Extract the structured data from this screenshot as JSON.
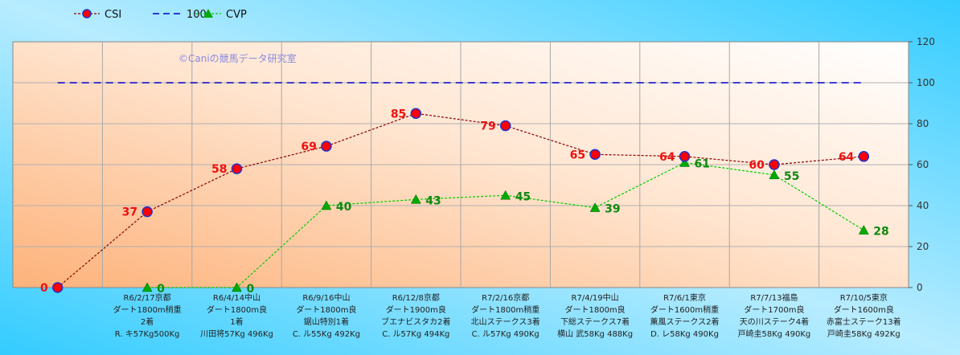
{
  "chart_data": {
    "type": "line",
    "watermark": "©Caniの競馬データ研究室",
    "categories": [
      [
        "",
        "",
        "",
        ""
      ],
      [
        "R6/2/17京都",
        "ダート1800m稍重",
        "2着",
        "R. キ57Kg500Kg"
      ],
      [
        "R6/4/14中山",
        "ダート1800m良",
        "1着",
        "川田将57Kg 496Kg"
      ],
      [
        "R6/9/16中山",
        "ダート1800m良",
        "鋸山特別1着",
        "C. ル55Kg 492Kg"
      ],
      [
        "R6/12/8京都",
        "ダート1900m良",
        "ブエナビスタカ2着",
        "C. ル57Kg 494Kg"
      ],
      [
        "R7/2/16京都",
        "ダート1800m稍重",
        "北山ステークス3着",
        "C. ル57Kg 490Kg"
      ],
      [
        "R7/4/19中山",
        "ダート1800m良",
        "下総ステークス7着",
        "横山 武58Kg 488Kg"
      ],
      [
        "R7/6/1東京",
        "ダート1600m稍重",
        "薫風ステークス2着",
        "D. レ58Kg 490Kg"
      ],
      [
        "R7/7/13福島",
        "ダート1700m良",
        "天の川ステーク4着",
        "戸崎圭58Kg 490Kg"
      ],
      [
        "R7/10/5東京",
        "ダート1600m良",
        "赤富士ステーク13着",
        "戸崎圭58Kg 492Kg"
      ]
    ],
    "series": [
      {
        "name": "CSI",
        "values": [
          0,
          37,
          58,
          69,
          85,
          79,
          65,
          64,
          60,
          64
        ],
        "color": "#8b0000",
        "marker_color": "#ff0000"
      },
      {
        "name": "100",
        "values": [
          100,
          100,
          100,
          100,
          100,
          100,
          100,
          100,
          100,
          100
        ],
        "color": "#0000cc"
      },
      {
        "name": "CVP",
        "values": [
          null,
          0,
          0,
          40,
          43,
          45,
          39,
          61,
          55,
          28
        ],
        "color": "#00cc00",
        "marker_color": "#00aa00"
      }
    ],
    "ylim": [
      0,
      120
    ],
    "yticks": [
      "0",
      "20",
      "40",
      "60",
      "80",
      "100",
      "120"
    ],
    "grid": true,
    "legend": "top-left"
  }
}
